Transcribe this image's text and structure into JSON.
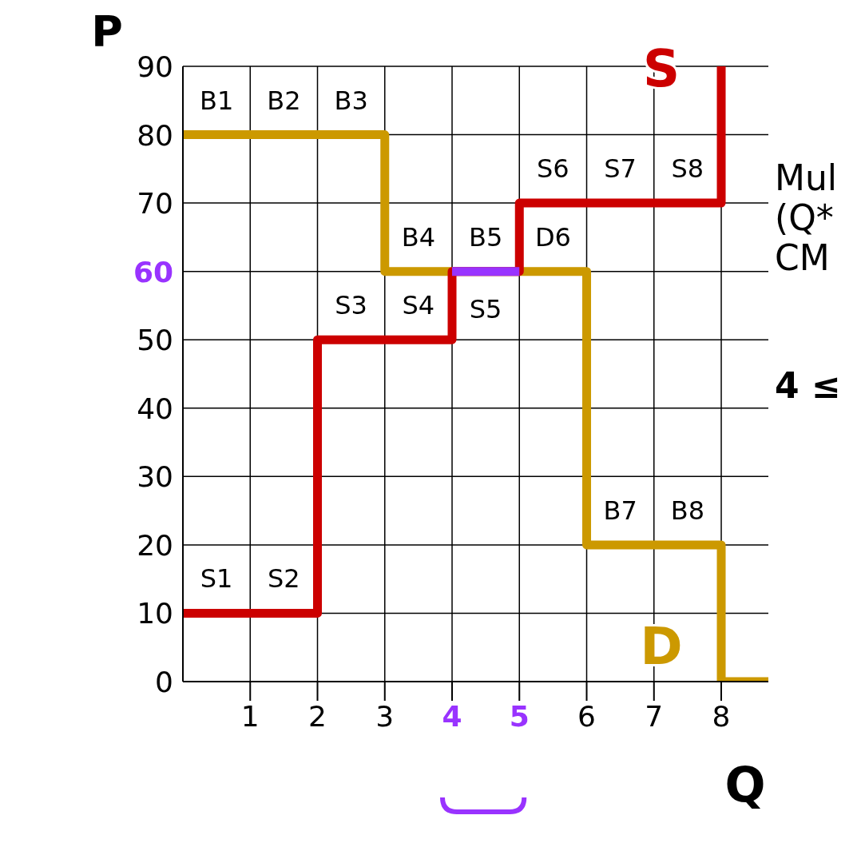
{
  "chart_data": {
    "type": "step",
    "xlabel": "Q",
    "ylabel": "P",
    "xlim": [
      0,
      8.7
    ],
    "xticks": [
      1,
      2,
      3,
      4,
      5,
      6,
      7,
      8
    ],
    "ylim": [
      0,
      90
    ],
    "yticks": [
      0,
      10,
      20,
      30,
      40,
      50,
      60,
      70,
      80,
      90
    ],
    "grid": true,
    "line_style": "solid",
    "marker": "none",
    "series": [
      {
        "name": "D",
        "color": "#cc9900",
        "x": [
          0,
          3,
          6,
          8,
          8.7
        ],
        "values": [
          80,
          60,
          20,
          0,
          0
        ]
      },
      {
        "name": "S",
        "color": "#cc0000",
        "x": [
          0,
          2,
          4,
          5,
          8
        ],
        "values": [
          10,
          50,
          60,
          70,
          90
        ]
      },
      {
        "color": "#9933ff",
        "type": "line",
        "x": [
          4,
          5
        ],
        "values": [
          60,
          60
        ]
      }
    ],
    "annotations": [
      {
        "text": "B1",
        "x": 0.5,
        "y": 80
      },
      {
        "text": "B2",
        "x": 1.5,
        "y": 80
      },
      {
        "text": "B3",
        "x": 2.5,
        "y": 80
      },
      {
        "text": "B4",
        "x": 3.5,
        "y": 60
      },
      {
        "text": "B5",
        "x": 4.5,
        "y": 60
      },
      {
        "text": "D6",
        "x": 5.5,
        "y": 60
      },
      {
        "text": "B7",
        "x": 6.5,
        "y": 20
      },
      {
        "text": "B8",
        "x": 7.5,
        "y": 20
      },
      {
        "text": "S1",
        "x": 0.5,
        "y": 10
      },
      {
        "text": "S2",
        "x": 1.5,
        "y": 10
      },
      {
        "text": "S3",
        "x": 2.5,
        "y": 50
      },
      {
        "text": "S4",
        "x": 3.5,
        "y": 50
      },
      {
        "text": "S5",
        "x": 4.5,
        "y": 60
      },
      {
        "text": "S6",
        "x": 5.5,
        "y": 70
      },
      {
        "text": "S7",
        "x": 6.5,
        "y": 70
      },
      {
        "text": "S8",
        "x": 7.5,
        "y": 70
      },
      "Mul",
      "(Q*",
      "CM",
      "4 ≤"
    ]
  }
}
